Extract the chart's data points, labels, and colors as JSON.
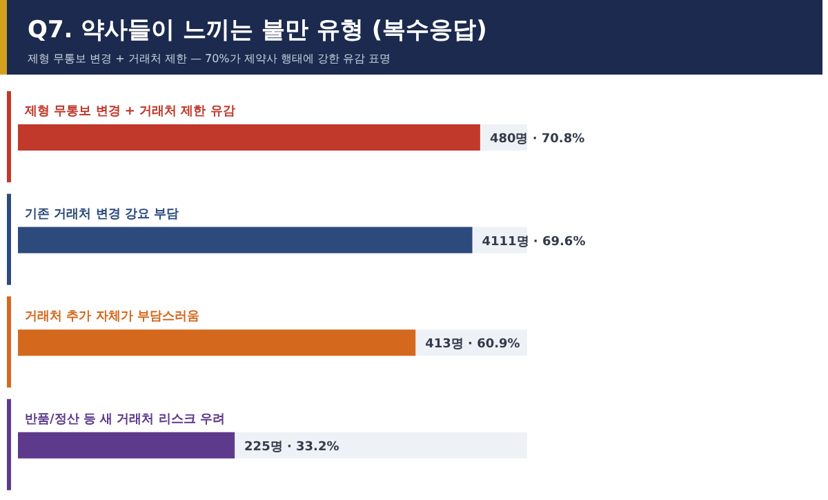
{
  "chart_data": {
    "type": "bar",
    "orientation": "horizontal",
    "title": "Q7. 약사들이 느끼는 불만 유형 (복수응답)",
    "subtitle": "제형 무통보 변경 + 거래처 제한 — 70%가 제약사 행태에 강한 유감 표명",
    "categories": [
      "제형 무통보 변경 + 거래처 제한 유감",
      "기존 거래처 변경 강요 부담",
      "거래처 추가 자체가 부담스러움",
      "반품/정산 등 새 거래처 리스크 우려"
    ],
    "values": [
      70.8,
      69.6,
      60.9,
      33.2
    ],
    "colors": [
      "#c0392b",
      "#2c4a7c",
      "#d4691e",
      "#5e3a8c"
    ],
    "value_labels": [
      "480명 · 70.8%",
      "4111명 · 69.6%",
      "413명 · 60.9%",
      "225명 · 33.2%"
    ],
    "xlim": [
      0,
      78
    ]
  }
}
